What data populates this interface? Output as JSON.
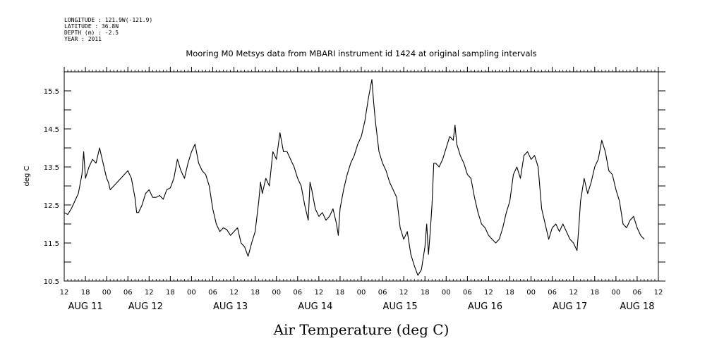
{
  "header": {
    "longitude": "LONGITUDE : 121.9W(-121.9)",
    "latitude": "LATITUDE : 36.8N",
    "depth": "DEPTH (m) : -2.5",
    "year": "YEAR : 2011"
  },
  "chart_data": {
    "type": "line",
    "title": "Mooring M0 Metsys data from MBARI instrument id 1424 at original sampling intervals",
    "xlabel": "Air Temperature (deg C)",
    "ylabel": "deg C",
    "x_units": "hours since AUG 11 12:00",
    "xlim": [
      0,
      168
    ],
    "ylim": [
      10.5,
      16.0
    ],
    "yticks": [
      10.5,
      11.5,
      12.5,
      13.5,
      14.5,
      15.5
    ],
    "ytick_labels": [
      "10.5",
      "11.5",
      "12.5",
      "13.5",
      "14.5",
      "15.5"
    ],
    "x_hour_ticks": [
      {
        "x": 0,
        "label": "12"
      },
      {
        "x": 6,
        "label": "18"
      },
      {
        "x": 12,
        "label": "00"
      },
      {
        "x": 18,
        "label": "06"
      },
      {
        "x": 24,
        "label": "12"
      },
      {
        "x": 30,
        "label": "18"
      },
      {
        "x": 36,
        "label": "00"
      },
      {
        "x": 42,
        "label": "06"
      },
      {
        "x": 48,
        "label": "12"
      },
      {
        "x": 54,
        "label": "18"
      },
      {
        "x": 60,
        "label": "00"
      },
      {
        "x": 66,
        "label": "06"
      },
      {
        "x": 72,
        "label": "12"
      },
      {
        "x": 78,
        "label": "18"
      },
      {
        "x": 84,
        "label": "00"
      },
      {
        "x": 90,
        "label": "06"
      },
      {
        "x": 96,
        "label": "12"
      },
      {
        "x": 102,
        "label": "18"
      },
      {
        "x": 108,
        "label": "00"
      },
      {
        "x": 114,
        "label": "06"
      },
      {
        "x": 120,
        "label": "12"
      },
      {
        "x": 126,
        "label": "18"
      },
      {
        "x": 132,
        "label": "00"
      },
      {
        "x": 138,
        "label": "06"
      },
      {
        "x": 144,
        "label": "12"
      },
      {
        "x": 150,
        "label": "18"
      },
      {
        "x": 156,
        "label": "00"
      },
      {
        "x": 162,
        "label": "06"
      },
      {
        "x": 168,
        "label": "12"
      }
    ],
    "x_day_labels": [
      {
        "x": 6,
        "label": "AUG 11"
      },
      {
        "x": 23,
        "label": "AUG 12"
      },
      {
        "x": 47,
        "label": "AUG 13"
      },
      {
        "x": 71,
        "label": "AUG 14"
      },
      {
        "x": 95,
        "label": "AUG 15"
      },
      {
        "x": 119,
        "label": "AUG 16"
      },
      {
        "x": 143,
        "label": "AUG 17"
      },
      {
        "x": 162,
        "label": "AUG 18"
      }
    ],
    "series": [
      {
        "color": "#000000",
        "points": [
          [
            0,
            12.3
          ],
          [
            1,
            12.25
          ],
          [
            2,
            12.4
          ],
          [
            3,
            12.6
          ],
          [
            4,
            12.8
          ],
          [
            5,
            13.3
          ],
          [
            5.5,
            13.9
          ],
          [
            6,
            13.2
          ],
          [
            7,
            13.5
          ],
          [
            8,
            13.7
          ],
          [
            9,
            13.6
          ],
          [
            10,
            14.0
          ],
          [
            11,
            13.6
          ],
          [
            12,
            13.2
          ],
          [
            12.5,
            13.1
          ],
          [
            13,
            12.9
          ],
          [
            14,
            13.0
          ],
          [
            15,
            13.1
          ],
          [
            16,
            13.2
          ],
          [
            17,
            13.3
          ],
          [
            18,
            13.4
          ],
          [
            19,
            13.2
          ],
          [
            20,
            12.7
          ],
          [
            20.5,
            12.3
          ],
          [
            21,
            12.3
          ],
          [
            22,
            12.5
          ],
          [
            23,
            12.8
          ],
          [
            24,
            12.9
          ],
          [
            25,
            12.7
          ],
          [
            26,
            12.7
          ],
          [
            27,
            12.75
          ],
          [
            28,
            12.65
          ],
          [
            29,
            12.9
          ],
          [
            30,
            12.95
          ],
          [
            31,
            13.2
          ],
          [
            32,
            13.7
          ],
          [
            33,
            13.4
          ],
          [
            34,
            13.2
          ],
          [
            35,
            13.6
          ],
          [
            36,
            13.9
          ],
          [
            37,
            14.1
          ],
          [
            38,
            13.6
          ],
          [
            39,
            13.4
          ],
          [
            40,
            13.3
          ],
          [
            41,
            13.0
          ],
          [
            42,
            12.4
          ],
          [
            43,
            12.0
          ],
          [
            44,
            11.8
          ],
          [
            45,
            11.9
          ],
          [
            46,
            11.85
          ],
          [
            47,
            11.7
          ],
          [
            48,
            11.8
          ],
          [
            49,
            11.9
          ],
          [
            50,
            11.5
          ],
          [
            51,
            11.4
          ],
          [
            52,
            11.15
          ],
          [
            53,
            11.5
          ],
          [
            54,
            11.8
          ],
          [
            55,
            12.6
          ],
          [
            55.5,
            13.1
          ],
          [
            56,
            12.8
          ],
          [
            57,
            13.2
          ],
          [
            58,
            13.0
          ],
          [
            59,
            13.9
          ],
          [
            60,
            13.7
          ],
          [
            61,
            14.4
          ],
          [
            62,
            13.9
          ],
          [
            63,
            13.9
          ],
          [
            64,
            13.7
          ],
          [
            65,
            13.5
          ],
          [
            66,
            13.2
          ],
          [
            67,
            13.0
          ],
          [
            68,
            12.5
          ],
          [
            69,
            12.1
          ],
          [
            69.5,
            13.1
          ],
          [
            70,
            12.9
          ],
          [
            71,
            12.4
          ],
          [
            72,
            12.2
          ],
          [
            73,
            12.3
          ],
          [
            74,
            12.1
          ],
          [
            75,
            12.2
          ],
          [
            76,
            12.4
          ],
          [
            77,
            12.0
          ],
          [
            77.5,
            11.7
          ],
          [
            78,
            12.4
          ],
          [
            79,
            12.9
          ],
          [
            80,
            13.3
          ],
          [
            81,
            13.6
          ],
          [
            82,
            13.8
          ],
          [
            83,
            14.1
          ],
          [
            84,
            14.3
          ],
          [
            85,
            14.7
          ],
          [
            86,
            15.3
          ],
          [
            87,
            15.8
          ],
          [
            87.5,
            15.2
          ],
          [
            88,
            14.7
          ],
          [
            89,
            13.9
          ],
          [
            90,
            13.6
          ],
          [
            91,
            13.4
          ],
          [
            92,
            13.1
          ],
          [
            93,
            12.9
          ],
          [
            94,
            12.7
          ],
          [
            95,
            11.9
          ],
          [
            96,
            11.6
          ],
          [
            97,
            11.8
          ],
          [
            98,
            11.2
          ],
          [
            99,
            10.9
          ],
          [
            100,
            10.65
          ],
          [
            101,
            10.8
          ],
          [
            102,
            11.4
          ],
          [
            102.5,
            12.0
          ],
          [
            103,
            11.2
          ],
          [
            103.5,
            11.8
          ],
          [
            104,
            12.5
          ],
          [
            104.5,
            13.6
          ],
          [
            105,
            13.6
          ],
          [
            106,
            13.5
          ],
          [
            107,
            13.7
          ],
          [
            108,
            14.0
          ],
          [
            109,
            14.3
          ],
          [
            110,
            14.2
          ],
          [
            110.5,
            14.6
          ],
          [
            111,
            14.1
          ],
          [
            112,
            13.8
          ],
          [
            113,
            13.6
          ],
          [
            114,
            13.3
          ],
          [
            115,
            13.2
          ],
          [
            116,
            12.7
          ],
          [
            117,
            12.3
          ],
          [
            118,
            12.0
          ],
          [
            119,
            11.9
          ],
          [
            120,
            11.7
          ],
          [
            121,
            11.6
          ],
          [
            122,
            11.5
          ],
          [
            123,
            11.6
          ],
          [
            124,
            11.9
          ],
          [
            125,
            12.3
          ],
          [
            126,
            12.6
          ],
          [
            127,
            13.3
          ],
          [
            128,
            13.5
          ],
          [
            129,
            13.2
          ],
          [
            130,
            13.8
          ],
          [
            131,
            13.9
          ],
          [
            132,
            13.7
          ],
          [
            133,
            13.8
          ],
          [
            134,
            13.5
          ],
          [
            135,
            12.4
          ],
          [
            136,
            12.0
          ],
          [
            137,
            11.6
          ],
          [
            138,
            11.9
          ],
          [
            139,
            12.0
          ],
          [
            140,
            11.8
          ],
          [
            141,
            12.0
          ],
          [
            142,
            11.8
          ],
          [
            143,
            11.6
          ],
          [
            144,
            11.5
          ],
          [
            145,
            11.3
          ],
          [
            145.5,
            11.9
          ],
          [
            146,
            12.6
          ],
          [
            147,
            13.2
          ],
          [
            148,
            12.8
          ],
          [
            149,
            13.1
          ],
          [
            150,
            13.5
          ],
          [
            151,
            13.7
          ],
          [
            152,
            14.2
          ],
          [
            153,
            13.9
          ],
          [
            154,
            13.4
          ],
          [
            155,
            13.3
          ],
          [
            156,
            12.9
          ],
          [
            157,
            12.6
          ],
          [
            158,
            12.0
          ],
          [
            159,
            11.9
          ],
          [
            160,
            12.1
          ],
          [
            161,
            12.2
          ],
          [
            162,
            11.9
          ],
          [
            163,
            11.7
          ],
          [
            164,
            11.6
          ]
        ]
      }
    ]
  }
}
